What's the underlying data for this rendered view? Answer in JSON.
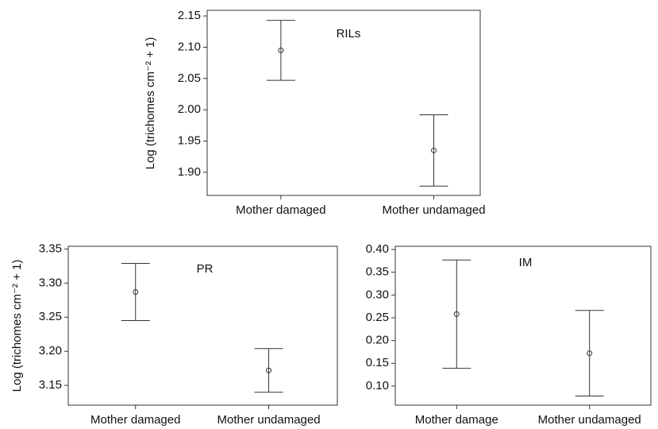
{
  "chart_data": [
    {
      "type": "errorbar",
      "title": "RILs",
      "ylabel": "Log (trichomes cm⁻² + 1)",
      "categories": [
        "Mother damaged",
        "Mother undamaged"
      ],
      "values": [
        2.095,
        1.935
      ],
      "errors": [
        0.048,
        0.057
      ],
      "ylim": [
        1.863,
        2.159
      ],
      "yticks": [
        {
          "value": 1.9,
          "label": "1.90"
        },
        {
          "value": 1.95,
          "label": "1.95"
        },
        {
          "value": 2.0,
          "label": "2.00"
        },
        {
          "value": 2.05,
          "label": "2.05"
        },
        {
          "value": 2.1,
          "label": "2.10"
        },
        {
          "value": 2.15,
          "label": "2.15"
        }
      ]
    },
    {
      "type": "errorbar",
      "title": "PR",
      "ylabel": "Log (trichomes cm⁻² + 1)",
      "categories": [
        "Mother damaged",
        "Mother undamaged"
      ],
      "values": [
        3.287,
        3.172
      ],
      "errors": [
        0.042,
        0.032
      ],
      "ylim": [
        3.121,
        3.354
      ],
      "yticks": [
        {
          "value": 3.15,
          "label": "3.15"
        },
        {
          "value": 3.2,
          "label": "3.20"
        },
        {
          "value": 3.25,
          "label": "3.25"
        },
        {
          "value": 3.3,
          "label": "3.30"
        },
        {
          "value": 3.35,
          "label": "3.35"
        }
      ]
    },
    {
      "type": "errorbar",
      "title": "IM",
      "categories": [
        "Mother damage",
        "Mother undamaged"
      ],
      "values": [
        0.258,
        0.172
      ],
      "errors": [
        0.119,
        0.094
      ],
      "ylim": [
        0.058,
        0.407
      ],
      "yticks": [
        {
          "value": 0.1,
          "label": "0.10"
        },
        {
          "value": 0.15,
          "label": "0.15"
        },
        {
          "value": 0.2,
          "label": "0.20"
        },
        {
          "value": 0.25,
          "label": "0.25"
        },
        {
          "value": 0.3,
          "label": "0.30"
        },
        {
          "value": 0.35,
          "label": "0.35"
        },
        {
          "value": 0.4,
          "label": "0.40"
        }
      ]
    }
  ]
}
